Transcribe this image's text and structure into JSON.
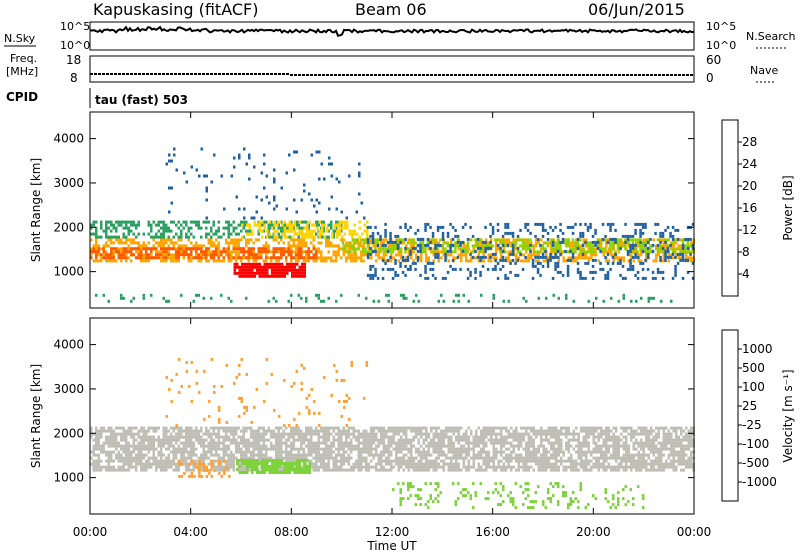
{
  "header": {
    "station": "Kapuskasing (fitACF)",
    "beam": "Beam 06",
    "date": "06/Jun/2015",
    "cpid_label": "CPID",
    "cpid_value": "tau (fast) 503"
  },
  "nsky_panel": {
    "left_label": "N.Sky",
    "left_ticks": [
      "10^5",
      "10^0"
    ],
    "right_ticks": [
      "10^5",
      "10^0"
    ],
    "right_label": "N.Search"
  },
  "freq_panel": {
    "left_label_line1": "Freq.",
    "left_label_line2": "[MHz]",
    "left_ticks": [
      "18",
      "8"
    ],
    "right_ticks": [
      "60",
      "0"
    ],
    "right_label": "Nave"
  },
  "power_colorbar": {
    "label": "Power [dB]",
    "ticks": [
      "28",
      "24",
      "20",
      "16",
      "12",
      "8",
      "4"
    ],
    "colors": [
      "#ff0000",
      "#ff5a00",
      "#ffa500",
      "#ffd400",
      "#8fd000",
      "#28a060",
      "#2060a0",
      "#0000ff"
    ]
  },
  "velocity_colorbar": {
    "label": "Velocity [m s⁻¹]",
    "ticks": [
      "1000",
      "500",
      "100",
      "25",
      "-25",
      "-100",
      "-500",
      "-1000"
    ],
    "colors": [
      "#1e3ca8",
      "#2f7fc0",
      "#2f9a4a",
      "#7ed23a",
      "#bebeb4",
      "#ffa030",
      "#ff7000",
      "#ff3000",
      "#ff0000"
    ]
  },
  "x_axis": {
    "label": "Time UT",
    "ticks": [
      "00:00",
      "04:00",
      "08:00",
      "12:00",
      "16:00",
      "20:00",
      "00:00"
    ]
  },
  "y_axis_power": {
    "label": "Slant Range [km]",
    "ticks": [
      "4000",
      "3000",
      "2000",
      "1000"
    ]
  },
  "y_axis_velocity": {
    "label": "Slant Range [km]",
    "ticks": [
      "4000",
      "3000",
      "2000",
      "1000"
    ]
  },
  "chart_data": [
    {
      "type": "heatmap",
      "name": "power",
      "x_range_hours": [
        0,
        24
      ],
      "y_range_km": [
        180,
        4600
      ],
      "blobs": [
        {
          "t0": 0.0,
          "t1": 24.0,
          "r0": 1250,
          "r1": 1750,
          "color": "#ffa500",
          "density": 0.55
        },
        {
          "t0": 0.0,
          "t1": 9.0,
          "r0": 1300,
          "r1": 1550,
          "color": "#ff5a00",
          "density": 0.6
        },
        {
          "t0": 5.7,
          "t1": 8.5,
          "r0": 900,
          "r1": 1200,
          "color": "#ff0000",
          "density": 0.9
        },
        {
          "t0": 0.0,
          "t1": 10.0,
          "r0": 1750,
          "r1": 2150,
          "color": "#28a060",
          "density": 0.5
        },
        {
          "t0": 6.0,
          "t1": 11.0,
          "r0": 1800,
          "r1": 2150,
          "color": "#ffd400",
          "density": 0.5
        },
        {
          "t0": 10.0,
          "t1": 24.0,
          "r0": 1450,
          "r1": 1750,
          "color": "#8fd000",
          "density": 0.5
        },
        {
          "t0": 11.0,
          "t1": 24.0,
          "r0": 850,
          "r1": 2100,
          "color": "#2060a0",
          "density": 0.22
        },
        {
          "t0": 0.0,
          "t1": 24.0,
          "r0": 300,
          "r1": 500,
          "color": "#28a060",
          "density": 0.12
        },
        {
          "t0": 3.0,
          "t1": 11.0,
          "r0": 2200,
          "r1": 3800,
          "color": "#2060a0",
          "density": 0.05
        }
      ]
    },
    {
      "type": "heatmap",
      "name": "velocity",
      "x_range_hours": [
        0,
        24
      ],
      "y_range_km": [
        180,
        4600
      ],
      "blobs": [
        {
          "t0": 0.0,
          "t1": 24.0,
          "r0": 1150,
          "r1": 2150,
          "color": "#bebeb4",
          "density": 0.75
        },
        {
          "t0": 5.8,
          "t1": 8.7,
          "r0": 1100,
          "r1": 1420,
          "color": "#7ed23a",
          "density": 0.8
        },
        {
          "t0": 3.5,
          "t1": 5.5,
          "r0": 1050,
          "r1": 1400,
          "color": "#ffa030",
          "density": 0.3
        },
        {
          "t0": 12.0,
          "t1": 22.0,
          "r0": 300,
          "r1": 900,
          "color": "#7ed23a",
          "density": 0.18
        },
        {
          "t0": 3.0,
          "t1": 11.0,
          "r0": 2200,
          "r1": 3700,
          "color": "#ffa030",
          "density": 0.05
        }
      ]
    }
  ]
}
